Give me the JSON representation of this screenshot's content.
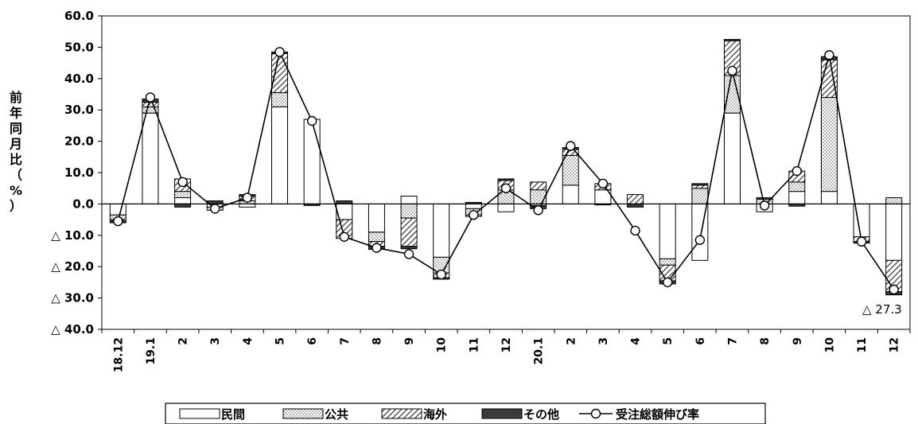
{
  "chart_data": {
    "type": "bar",
    "subtype": "stacked-bar-with-line",
    "ylabel": "前年同月比（%）",
    "ylim": [
      -40,
      60
    ],
    "y_ticks": [
      {
        "value": 60,
        "label": "60.0"
      },
      {
        "value": 50,
        "label": "50.0"
      },
      {
        "value": 40,
        "label": "40.0"
      },
      {
        "value": 30,
        "label": "30.0"
      },
      {
        "value": 20,
        "label": "20.0"
      },
      {
        "value": 10,
        "label": "10.0"
      },
      {
        "value": 0,
        "label": "0.0"
      },
      {
        "value": -10,
        "label": "△ 10.0"
      },
      {
        "value": -20,
        "label": "△ 20.0"
      },
      {
        "value": -30,
        "label": "△ 30.0"
      },
      {
        "value": -40,
        "label": "△ 40.0"
      }
    ],
    "categories": [
      "18.12",
      "19.1",
      "2",
      "3",
      "4",
      "5",
      "6",
      "7",
      "8",
      "9",
      "10",
      "11",
      "12",
      "20.1",
      "2",
      "3",
      "4",
      "5",
      "6",
      "7",
      "8",
      "9",
      "10",
      "11",
      "12"
    ],
    "series": [
      {
        "name": "民間",
        "pattern": "white",
        "values": [
          -3.5,
          29,
          2,
          -1,
          -1,
          31,
          27,
          -5,
          -9,
          2.5,
          -17,
          -1.5,
          -2.5,
          -0.5,
          6,
          4.5,
          0,
          -17.5,
          -18,
          29,
          -2.5,
          4,
          4,
          -10.5,
          -18
        ]
      },
      {
        "name": "公共",
        "pattern": "dots",
        "values": [
          -1.5,
          2,
          2,
          -1,
          1,
          4.5,
          0,
          0,
          -3,
          -4.5,
          -5,
          -2,
          4.5,
          4.5,
          9.5,
          0,
          0,
          -2,
          5,
          12,
          1.5,
          3,
          30,
          0,
          2
        ]
      },
      {
        "name": "海外",
        "pattern": "hatch",
        "values": [
          -0.5,
          1.5,
          4,
          0,
          1.5,
          12.5,
          0,
          -6,
          -1.5,
          -9,
          -1.5,
          -0.5,
          3,
          2.5,
          2,
          2,
          3,
          -5,
          1,
          11,
          0,
          3.5,
          12,
          -1.5,
          -10
        ]
      },
      {
        "name": "その他",
        "pattern": "solid",
        "values": [
          -0.5,
          1,
          -1,
          1,
          0.5,
          0.5,
          -0.5,
          1,
          -1,
          -0.8,
          -0.5,
          0.5,
          0.5,
          -1,
          0.5,
          -0.3,
          -1,
          -1,
          0.5,
          0.5,
          0.5,
          -0.7,
          1,
          -0.5,
          -1
        ]
      }
    ],
    "line": {
      "name": "受注総額伸び率",
      "values": [
        -5.5,
        34,
        7,
        -1.5,
        2,
        48.5,
        26.5,
        -10.5,
        -14,
        -16,
        -22.5,
        -3.5,
        5,
        -2,
        18.5,
        6.5,
        -8.5,
        -25,
        -11.5,
        42.5,
        -0.5,
        10.5,
        47.5,
        -12,
        -27.3
      ]
    },
    "annotation": {
      "text": "△ 27.3"
    },
    "legend": {
      "position": "bottom-center"
    },
    "grid": false
  }
}
